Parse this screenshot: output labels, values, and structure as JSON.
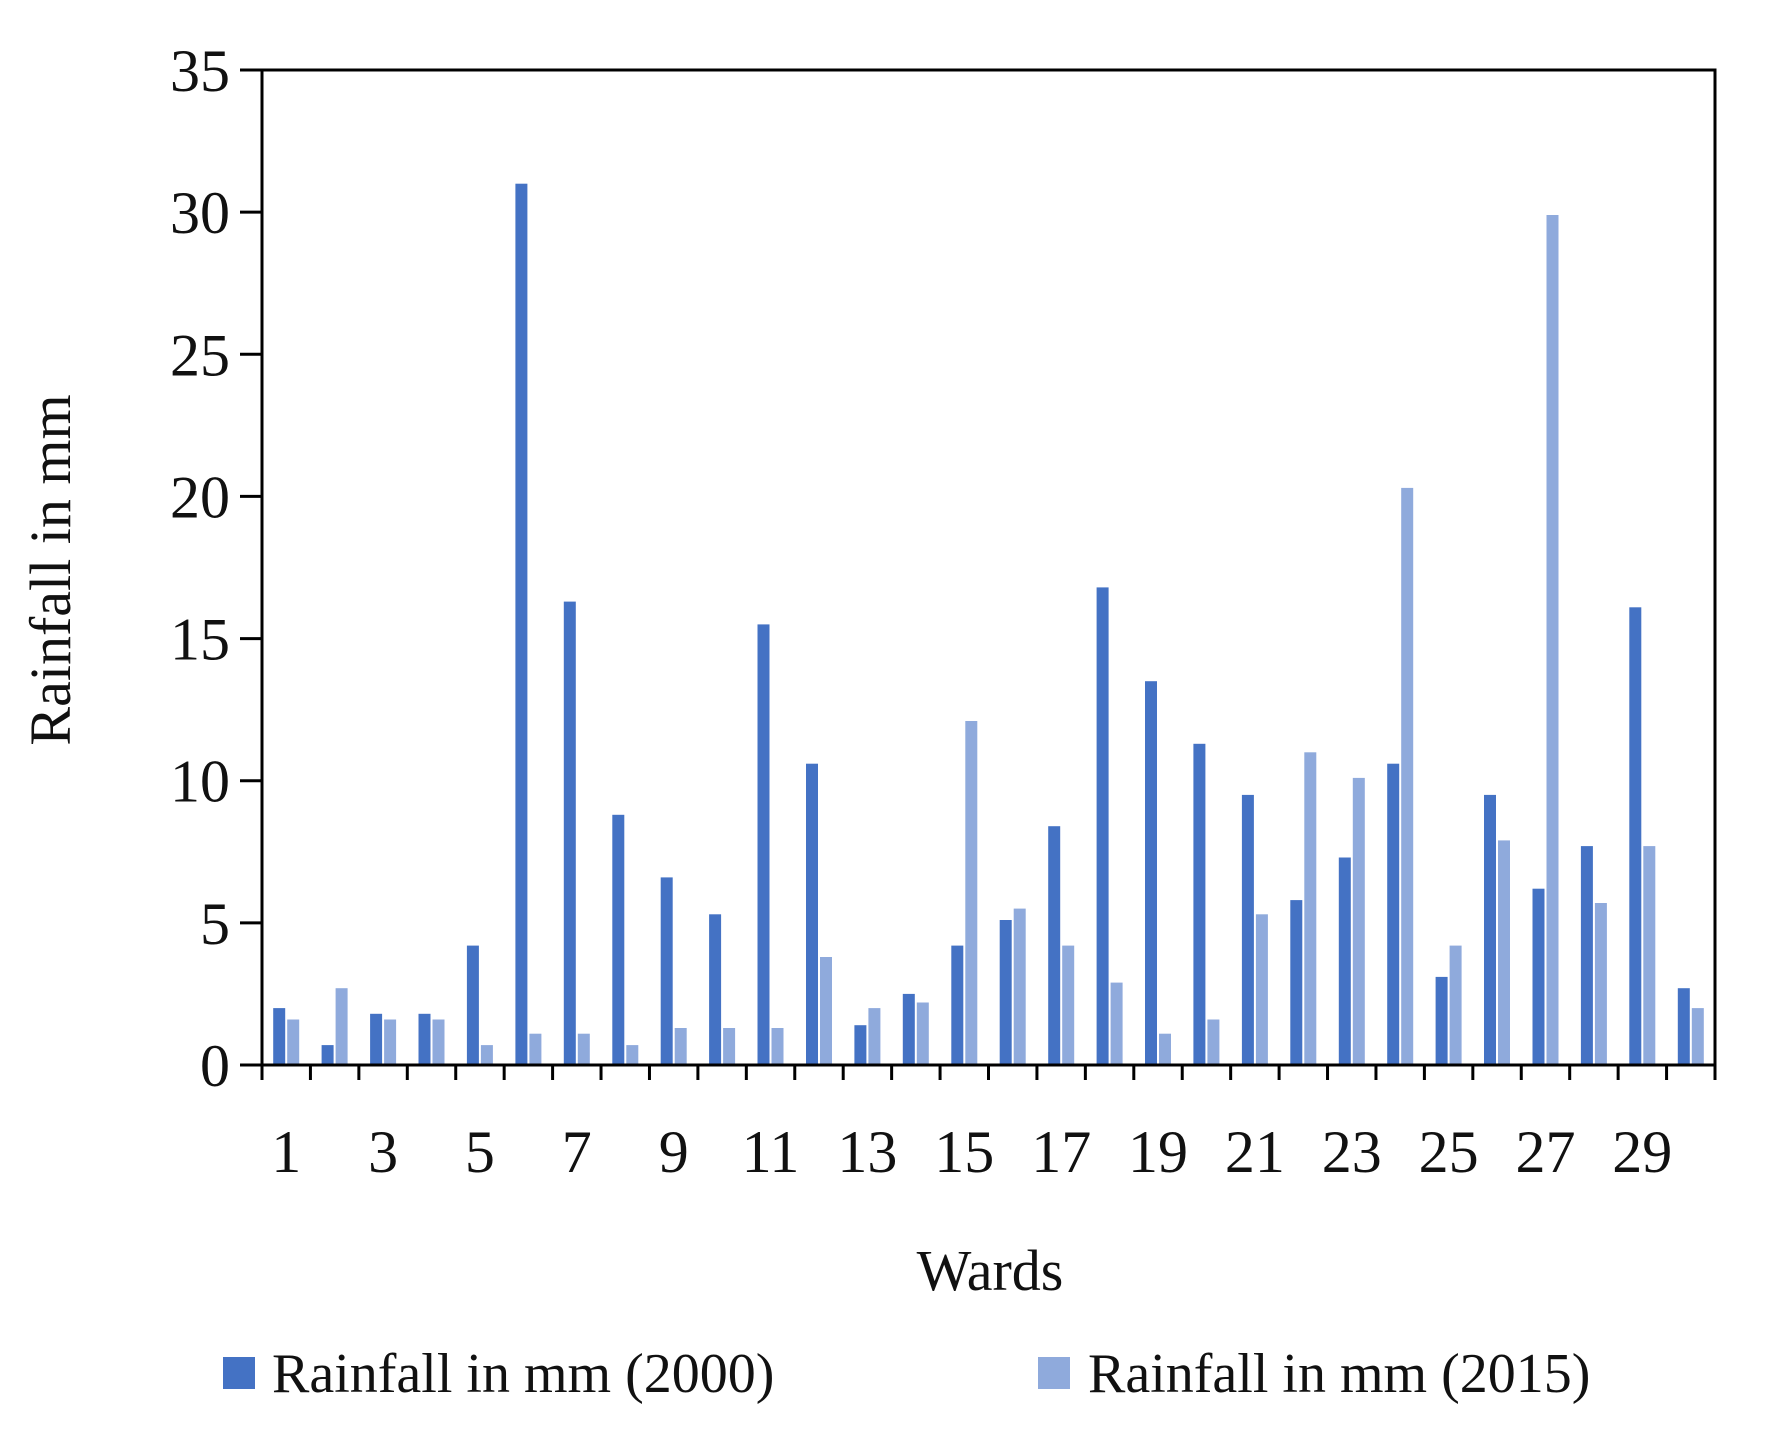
{
  "chart_data": {
    "type": "bar",
    "title": "",
    "xlabel": "Wards",
    "ylabel": "Rainfall in mm",
    "ylim": [
      0,
      35
    ],
    "yticks": [
      0,
      5,
      10,
      15,
      20,
      25,
      30,
      35
    ],
    "grid": false,
    "legend_position": "bottom",
    "categories": [
      1,
      2,
      3,
      4,
      5,
      6,
      7,
      8,
      9,
      10,
      11,
      12,
      13,
      14,
      15,
      16,
      17,
      18,
      19,
      20,
      21,
      22,
      23,
      24,
      25,
      26,
      27,
      28,
      29,
      30
    ],
    "xtick_labels": [
      "1",
      "3",
      "5",
      "7",
      "9",
      "11",
      "13",
      "15",
      "17",
      "19",
      "21",
      "23",
      "25",
      "27",
      "29"
    ],
    "series": [
      {
        "name": "Rainfall in mm (2000)",
        "color": "#4472C4",
        "values": [
          2.0,
          0.7,
          1.8,
          1.8,
          4.2,
          31.0,
          16.3,
          8.8,
          6.6,
          5.3,
          15.5,
          10.6,
          1.4,
          2.5,
          4.2,
          5.1,
          8.4,
          16.8,
          13.5,
          11.3,
          9.5,
          5.8,
          7.3,
          10.6,
          3.1,
          9.5,
          6.2,
          7.7,
          16.1,
          2.7
        ]
      },
      {
        "name": "Rainfall in mm (2015)",
        "color": "#8FAADC",
        "values": [
          1.6,
          2.7,
          1.6,
          1.6,
          0.7,
          1.1,
          1.1,
          0.7,
          1.3,
          1.3,
          1.3,
          3.8,
          2.0,
          2.2,
          12.1,
          5.5,
          4.2,
          2.9,
          1.1,
          1.6,
          5.3,
          11.0,
          10.1,
          20.3,
          4.2,
          7.9,
          29.9,
          5.7,
          7.7,
          2.0
        ]
      }
    ]
  }
}
